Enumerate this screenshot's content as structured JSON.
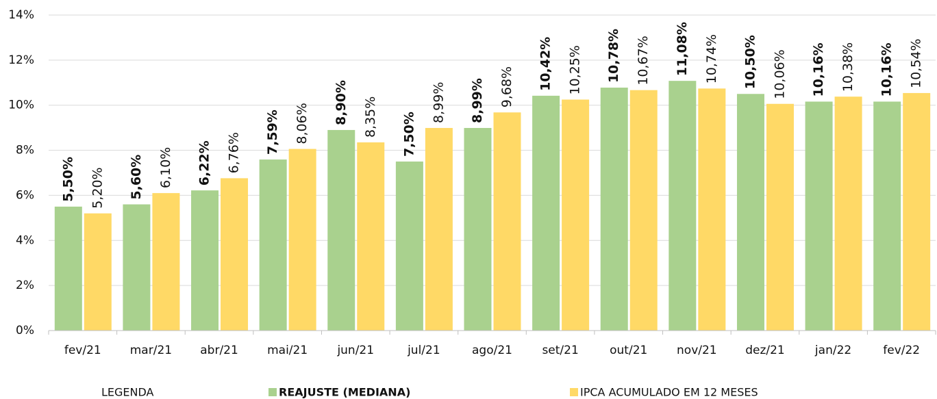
{
  "chart_data": {
    "type": "bar",
    "categories": [
      "fev/21",
      "mar/21",
      "abr/21",
      "mai/21",
      "jun/21",
      "jul/21",
      "ago/21",
      "set/21",
      "out/21",
      "nov/21",
      "dez/21",
      "jan/22",
      "fev/22"
    ],
    "series": [
      {
        "name": "REAJUSTE (MEDIANA)",
        "color": "#a9d18e",
        "values": [
          5.5,
          5.6,
          6.22,
          7.59,
          8.9,
          7.5,
          8.99,
          10.42,
          10.78,
          11.08,
          10.5,
          10.16,
          10.16
        ],
        "value_labels": [
          "5,50%",
          "5,60%",
          "6,22%",
          "7,59%",
          "8,90%",
          "7,50%",
          "8,99%",
          "10,42%",
          "10,78%",
          "11,08%",
          "10,50%",
          "10,16%",
          "10,16%"
        ]
      },
      {
        "name": "IPCA ACUMULADO EM 12 MESES",
        "color": "#ffd966",
        "values": [
          5.2,
          6.1,
          6.76,
          8.06,
          8.35,
          8.99,
          9.68,
          10.25,
          10.67,
          10.74,
          10.06,
          10.38,
          10.54
        ],
        "value_labels": [
          "5,20%",
          "6,10%",
          "6,76%",
          "8,06%",
          "8,35%",
          "8,99%",
          "9,68%",
          "10,25%",
          "10,67%",
          "10,74%",
          "10,06%",
          "10,38%",
          "10,54%"
        ]
      }
    ],
    "ylim": [
      0,
      14
    ],
    "yticks": [
      {
        "value": 0,
        "label": "0%"
      },
      {
        "value": 2,
        "label": "2%"
      },
      {
        "value": 4,
        "label": "4%"
      },
      {
        "value": 6,
        "label": "6%"
      },
      {
        "value": 8,
        "label": "8%"
      },
      {
        "value": 10,
        "label": "10%"
      },
      {
        "value": 12,
        "label": "12%"
      },
      {
        "value": 14,
        "label": "14%"
      }
    ],
    "grid": true,
    "legend_title": "LEGENDA",
    "legend": "bottom"
  }
}
